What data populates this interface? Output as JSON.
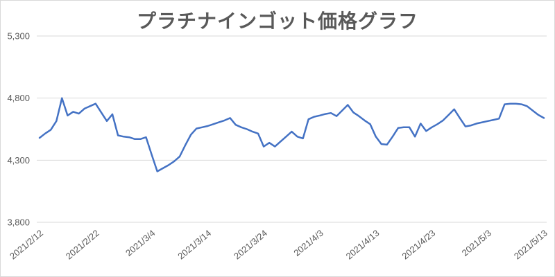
{
  "chart_data": {
    "type": "line",
    "title": "プラチナインゴット価格グラフ",
    "grid": true,
    "legend": false,
    "line_color": "#4472C4",
    "grid_color": "#D9D9D9",
    "axis_text_color": "#595959",
    "title_color": "#595959",
    "ylim": [
      3800,
      5300
    ],
    "y_ticks": [
      5300,
      4800,
      4300,
      3800
    ],
    "y_tick_labels": [
      "5,300",
      "4,800",
      "4,300",
      "3,800"
    ],
    "x_tick_indices": [
      0,
      10,
      20,
      30,
      40,
      50,
      60,
      70,
      80,
      90
    ],
    "x_tick_labels": [
      "2021/2/12",
      "2021/2/22",
      "2021/3/4",
      "2021/3/14",
      "2021/3/24",
      "2021/4/3",
      "2021/4/13",
      "2021/4/23",
      "2021/5/3",
      "2021/5/13"
    ],
    "x": [
      "2021/2/12",
      "2021/2/13",
      "2021/2/14",
      "2021/2/15",
      "2021/2/16",
      "2021/2/17",
      "2021/2/18",
      "2021/2/19",
      "2021/2/20",
      "2021/2/21",
      "2021/2/22",
      "2021/2/23",
      "2021/2/24",
      "2021/2/25",
      "2021/2/26",
      "2021/2/27",
      "2021/2/28",
      "2021/3/1",
      "2021/3/2",
      "2021/3/3",
      "2021/3/4",
      "2021/3/5",
      "2021/3/6",
      "2021/3/7",
      "2021/3/8",
      "2021/3/9",
      "2021/3/10",
      "2021/3/11",
      "2021/3/12",
      "2021/3/13",
      "2021/3/14",
      "2021/3/15",
      "2021/3/16",
      "2021/3/17",
      "2021/3/18",
      "2021/3/19",
      "2021/3/20",
      "2021/3/21",
      "2021/3/22",
      "2021/3/23",
      "2021/3/24",
      "2021/3/25",
      "2021/3/26",
      "2021/3/27",
      "2021/3/28",
      "2021/3/29",
      "2021/3/30",
      "2021/3/31",
      "2021/4/1",
      "2021/4/2",
      "2021/4/3",
      "2021/4/4",
      "2021/4/5",
      "2021/4/6",
      "2021/4/7",
      "2021/4/8",
      "2021/4/9",
      "2021/4/10",
      "2021/4/11",
      "2021/4/12",
      "2021/4/13",
      "2021/4/14",
      "2021/4/15",
      "2021/4/16",
      "2021/4/17",
      "2021/4/18",
      "2021/4/19",
      "2021/4/20",
      "2021/4/21",
      "2021/4/22",
      "2021/4/23",
      "2021/4/24",
      "2021/4/25",
      "2021/4/26",
      "2021/4/27",
      "2021/4/28",
      "2021/4/29",
      "2021/4/30",
      "2021/5/1",
      "2021/5/2",
      "2021/5/3",
      "2021/5/4",
      "2021/5/5",
      "2021/5/6",
      "2021/5/7",
      "2021/5/8",
      "2021/5/9",
      "2021/5/10",
      "2021/5/11",
      "2021/5/12",
      "2021/5/13"
    ],
    "values": [
      4480,
      4515,
      4545,
      4615,
      4800,
      4660,
      4690,
      4675,
      4715,
      4735,
      4755,
      4685,
      4615,
      4670,
      4500,
      4490,
      4485,
      4470,
      4470,
      4485,
      4345,
      4210,
      4235,
      4260,
      4290,
      4330,
      4420,
      4505,
      4555,
      4565,
      4575,
      4590,
      4605,
      4620,
      4640,
      4585,
      4565,
      4550,
      4530,
      4515,
      4410,
      4440,
      4410,
      4450,
      4490,
      4530,
      4490,
      4475,
      4630,
      4650,
      4660,
      4672,
      4680,
      4655,
      4700,
      4745,
      4685,
      4655,
      4620,
      4590,
      4490,
      4430,
      4425,
      4490,
      4560,
      4565,
      4565,
      4490,
      4595,
      4535,
      4565,
      4590,
      4620,
      4665,
      4710,
      4640,
      4572,
      4580,
      4595,
      4605,
      4615,
      4625,
      4635,
      4750,
      4755,
      4755,
      4750,
      4735,
      4700,
      4665,
      4640
    ]
  }
}
